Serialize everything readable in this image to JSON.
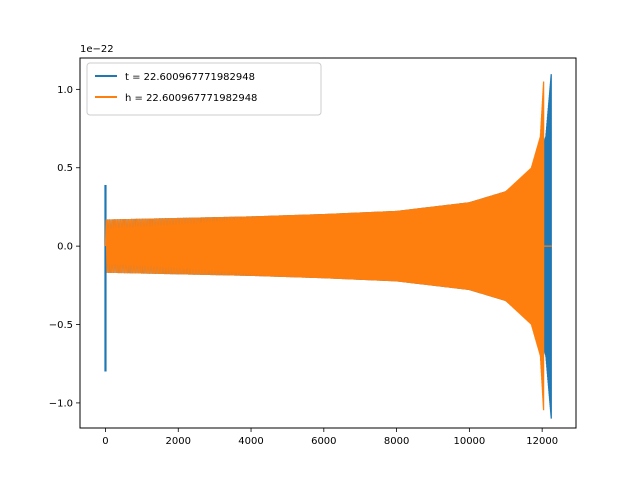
{
  "chart_data": {
    "type": "line",
    "title": "",
    "xlabel": "",
    "ylabel": "",
    "y_offset_label": "1e−22",
    "y_scale": 1e-22,
    "xlim": [
      -700,
      12930
    ],
    "ylim": [
      -1.16,
      1.2
    ],
    "x_ticks": [
      0,
      2000,
      4000,
      6000,
      8000,
      10000,
      12000
    ],
    "x_tick_labels": [
      "0",
      "2000",
      "4000",
      "6000",
      "8000",
      "10000",
      "12000"
    ],
    "y_ticks": [
      -1.0,
      -0.5,
      0.0,
      0.5,
      1.0
    ],
    "y_tick_labels": [
      "−1.0",
      "−0.5",
      "0.0",
      "0.5",
      "1.0"
    ],
    "legend_position": "top-left",
    "grid": false,
    "series": [
      {
        "name": "t = 22.600967771982948",
        "color": "#1f77b4",
        "start_spike": {
          "x": 0,
          "min": -0.8,
          "max": 0.39
        },
        "envelope": [
          [
            0,
            0.17
          ],
          [
            2000,
            0.18
          ],
          [
            4000,
            0.19
          ],
          [
            6000,
            0.205
          ],
          [
            8000,
            0.225
          ],
          [
            10000,
            0.28
          ],
          [
            11000,
            0.35
          ],
          [
            11800,
            0.5
          ],
          [
            12100,
            0.7
          ],
          [
            12250,
            1.1
          ]
        ],
        "oscillation_end_x": 12250,
        "flat_after": [
          12250,
          12270
        ]
      },
      {
        "name": "h = 22.600967771982948",
        "color": "#ff7f0e",
        "start_spike": null,
        "envelope": [
          [
            0,
            0.17
          ],
          [
            2000,
            0.18
          ],
          [
            4000,
            0.19
          ],
          [
            6000,
            0.205
          ],
          [
            8000,
            0.225
          ],
          [
            10000,
            0.28
          ],
          [
            11000,
            0.35
          ],
          [
            11700,
            0.5
          ],
          [
            11950,
            0.7
          ],
          [
            12040,
            1.05
          ]
        ],
        "oscillation_end_x": 12040,
        "flat_after": [
          12040,
          12270
        ]
      }
    ]
  }
}
